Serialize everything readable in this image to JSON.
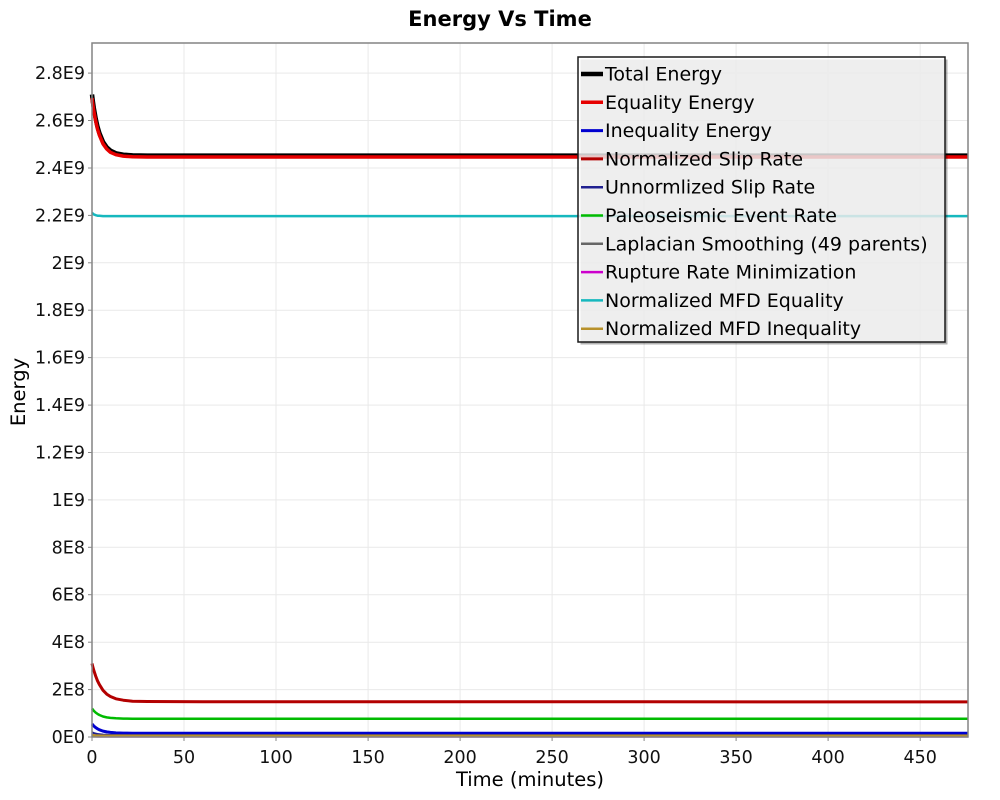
{
  "chart_data": {
    "type": "line",
    "title": "Energy Vs Time",
    "xlabel": "Time (minutes)",
    "ylabel": "Energy",
    "xlim": [
      0,
      476
    ],
    "ylim": [
      0,
      2927000000.0
    ],
    "grid": true,
    "legend_position": "inside-top-right",
    "background_color": "#FFFFFF",
    "frame_color": "#848484",
    "grid_color": "#E9E9E9",
    "legend_border_color": "#1A1A1A",
    "legend_background": "rgba(255,255,255,0.78)",
    "x_ticks": [
      {
        "v": 0,
        "label": "0"
      },
      {
        "v": 50,
        "label": "50"
      },
      {
        "v": 100,
        "label": "100"
      },
      {
        "v": 150,
        "label": "150"
      },
      {
        "v": 200,
        "label": "200"
      },
      {
        "v": 250,
        "label": "250"
      },
      {
        "v": 300,
        "label": "300"
      },
      {
        "v": 350,
        "label": "350"
      },
      {
        "v": 400,
        "label": "400"
      },
      {
        "v": 450,
        "label": "450"
      }
    ],
    "y_ticks": [
      {
        "v": 0,
        "label": "0E0"
      },
      {
        "v": 200000000.0,
        "label": "2E8"
      },
      {
        "v": 400000000.0,
        "label": "4E8"
      },
      {
        "v": 600000000.0,
        "label": "6E8"
      },
      {
        "v": 800000000.0,
        "label": "8E8"
      },
      {
        "v": 1000000000.0,
        "label": "1E9"
      },
      {
        "v": 1200000000.0,
        "label": "1.2E9"
      },
      {
        "v": 1400000000.0,
        "label": "1.4E9"
      },
      {
        "v": 1600000000.0,
        "label": "1.6E9"
      },
      {
        "v": 1800000000.0,
        "label": "1.8E9"
      },
      {
        "v": 2000000000.0,
        "label": "2E9"
      },
      {
        "v": 2200000000.0,
        "label": "2.2E9"
      },
      {
        "v": 2400000000.0,
        "label": "2.4E9"
      },
      {
        "v": 2600000000.0,
        "label": "2.6E9"
      },
      {
        "v": 2800000000.0,
        "label": "2.8E9"
      }
    ],
    "series": [
      {
        "id": "total-energy",
        "name": "Total Energy",
        "color": "#000000",
        "width": 4.5,
        "points": [
          [
            0,
            2710000000.0
          ],
          [
            0.5,
            2680000000.0
          ],
          [
            1,
            2653000000.0
          ],
          [
            2,
            2608000000.0
          ],
          [
            3,
            2574000000.0
          ],
          [
            4,
            2547000000.0
          ],
          [
            6,
            2510000000.0
          ],
          [
            8,
            2487000000.0
          ],
          [
            10,
            2473000000.0
          ],
          [
            13,
            2462000000.0
          ],
          [
            17,
            2456000000.0
          ],
          [
            22,
            2453000000.0
          ],
          [
            30,
            2452000000.0
          ],
          [
            60,
            2452000000.0
          ],
          [
            150,
            2452000000.0
          ],
          [
            300,
            2452000000.0
          ],
          [
            476,
            2452000000.0
          ]
        ]
      },
      {
        "id": "equality-energy",
        "name": "Equality Energy",
        "color": "#E60000",
        "width": 3.5,
        "points": [
          [
            0,
            2695000000.0
          ],
          [
            0.5,
            2666000000.0
          ],
          [
            1,
            2640000000.0
          ],
          [
            2,
            2597000000.0
          ],
          [
            3,
            2564000000.0
          ],
          [
            4,
            2538000000.0
          ],
          [
            6,
            2502000000.0
          ],
          [
            8,
            2480000000.0
          ],
          [
            10,
            2466000000.0
          ],
          [
            13,
            2456000000.0
          ],
          [
            17,
            2450000000.0
          ],
          [
            22,
            2447000000.0
          ],
          [
            30,
            2446000000.0
          ],
          [
            60,
            2446000000.0
          ],
          [
            150,
            2446000000.0
          ],
          [
            300,
            2446000000.0
          ],
          [
            476,
            2446000000.0
          ]
        ]
      },
      {
        "id": "inequality-energy",
        "name": "Inequality Energy",
        "color": "#0000D0",
        "width": 3,
        "points": [
          [
            0,
            55000000.0
          ],
          [
            1,
            46400000.0
          ],
          [
            2,
            39700000.0
          ],
          [
            3,
            34400000.0
          ],
          [
            4,
            30300000.0
          ],
          [
            6,
            24700000.0
          ],
          [
            8,
            21300000.0
          ],
          [
            10,
            19200000.0
          ],
          [
            13,
            17500000.0
          ],
          [
            17,
            16600000.0
          ],
          [
            22,
            16200000.0
          ],
          [
            30,
            16000000.0
          ],
          [
            100,
            16000000.0
          ],
          [
            300,
            16000000.0
          ],
          [
            476,
            16000000.0
          ]
        ]
      },
      {
        "id": "normalized-slip-rate",
        "name": "Normalized Slip Rate",
        "color": "#B30000",
        "width": 3,
        "points": [
          [
            0,
            310000000.0
          ],
          [
            0.5,
            295000000.0
          ],
          [
            1,
            281000000.0
          ],
          [
            2,
            257000000.0
          ],
          [
            3,
            237000000.0
          ],
          [
            4,
            221000000.0
          ],
          [
            6,
            197000000.0
          ],
          [
            8,
            181000000.0
          ],
          [
            10,
            171000000.0
          ],
          [
            13,
            161000000.0
          ],
          [
            17,
            155000000.0
          ],
          [
            22,
            151000000.0
          ],
          [
            30,
            149700000.0
          ],
          [
            60,
            149000000.0
          ],
          [
            150,
            148700000.0
          ],
          [
            300,
            148400000.0
          ],
          [
            476,
            148000000.0
          ]
        ]
      },
      {
        "id": "unnormlized-slip-rate",
        "name": "Unnormlized Slip Rate",
        "color": "#202090",
        "width": 2,
        "points": [
          [
            0,
            20000000.0
          ],
          [
            1,
            16600000.0
          ],
          [
            2,
            14400000.0
          ],
          [
            3,
            12800000.0
          ],
          [
            4,
            11600000.0
          ],
          [
            6,
            10200000.0
          ],
          [
            8,
            9300000.0
          ],
          [
            10,
            8800000.0
          ],
          [
            15,
            8300000.0
          ],
          [
            20,
            8100000.0
          ],
          [
            30,
            8000000.0
          ],
          [
            150,
            8000000.0
          ],
          [
            476,
            8000000.0
          ]
        ]
      },
      {
        "id": "paleoseismic-event-rate",
        "name": "Paleoseismic Event Rate",
        "color": "#00BB00",
        "width": 2.5,
        "points": [
          [
            0,
            120000000.0
          ],
          [
            1,
            110500000.0
          ],
          [
            2,
            103100000.0
          ],
          [
            3,
            97300000.0
          ],
          [
            4,
            92800000.0
          ],
          [
            6,
            86600000.0
          ],
          [
            8,
            82800000.0
          ],
          [
            10,
            80500000.0
          ],
          [
            13,
            78700000.0
          ],
          [
            17,
            77600000.0
          ],
          [
            22,
            77200000.0
          ],
          [
            30,
            77000000.0
          ],
          [
            150,
            77000000.0
          ],
          [
            300,
            77000000.0
          ],
          [
            476,
            77000000.0
          ]
        ]
      },
      {
        "id": "laplacian-smoothing",
        "name": "Laplacian Smoothing (49 parents)",
        "color": "#666666",
        "width": 2,
        "points": [
          [
            0,
            5000000.0
          ],
          [
            2,
            4000000.0
          ],
          [
            5,
            3300000.0
          ],
          [
            10,
            3000000.0
          ],
          [
            476,
            3000000.0
          ]
        ]
      },
      {
        "id": "rupture-rate-minimization",
        "name": "Rupture Rate Minimization",
        "color": "#CC00CC",
        "width": 2,
        "points": [
          [
            0,
            2500000.0
          ],
          [
            3,
            1800000.0
          ],
          [
            10,
            1500000.0
          ],
          [
            476,
            1500000.0
          ]
        ]
      },
      {
        "id": "normalized-mfd-equality",
        "name": "Normalized MFD Equality",
        "color": "#16B8BE",
        "width": 2.5,
        "points": [
          [
            0,
            2211000000.0
          ],
          [
            1,
            2204200000.0
          ],
          [
            2,
            2200700000.0
          ],
          [
            3,
            2198800000.0
          ],
          [
            4,
            2198000000.0
          ],
          [
            6,
            2197000000.0
          ],
          [
            100,
            2197000000.0
          ],
          [
            300,
            2197000000.0
          ],
          [
            476,
            2197000000.0
          ]
        ]
      },
      {
        "id": "normalized-mfd-inequality",
        "name": "Normalized MFD Inequality",
        "color": "#B8912B",
        "width": 2.5,
        "points": [
          [
            0,
            8000000.0
          ],
          [
            2,
            6500000.0
          ],
          [
            5,
            5500000.0
          ],
          [
            10,
            5000000.0
          ],
          [
            476,
            5000000.0
          ]
        ]
      }
    ]
  }
}
